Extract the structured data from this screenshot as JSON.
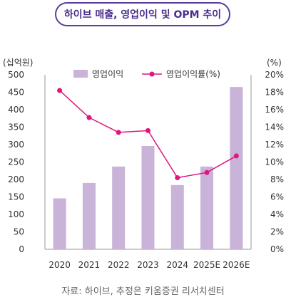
{
  "title": "하이브 매출, 영업이익 및 OPM 추이",
  "source": "자료: 하이브, 추정은 키움증권 리서치센터",
  "chart_data": {
    "type": "bar+line",
    "categories": [
      "2020",
      "2021",
      "2022",
      "2023",
      "2024",
      "2025E",
      "2026E"
    ],
    "series": [
      {
        "name": "영업이익",
        "type": "bar",
        "axis": "left",
        "color": "#c9b3d9",
        "values": [
          146,
          190,
          237,
          296,
          184,
          237,
          465
        ]
      },
      {
        "name": "영업이익률(%)",
        "type": "line",
        "axis": "right",
        "color": "#e0157f",
        "values": [
          18.2,
          15.1,
          13.4,
          13.6,
          8.2,
          8.8,
          10.7
        ]
      }
    ],
    "y_left": {
      "label": "(십억원)",
      "min": 0,
      "max": 500,
      "ticks": [
        "0",
        "50",
        "100",
        "150",
        "200",
        "250",
        "300",
        "350",
        "400",
        "450",
        "500"
      ]
    },
    "y_right": {
      "label": "(%)",
      "min": 0,
      "max": 20,
      "ticks": [
        "0%",
        "2%",
        "4%",
        "6%",
        "8%",
        "10%",
        "12%",
        "14%",
        "16%",
        "18%",
        "20%"
      ]
    },
    "legend_position": "top",
    "grid": false
  }
}
